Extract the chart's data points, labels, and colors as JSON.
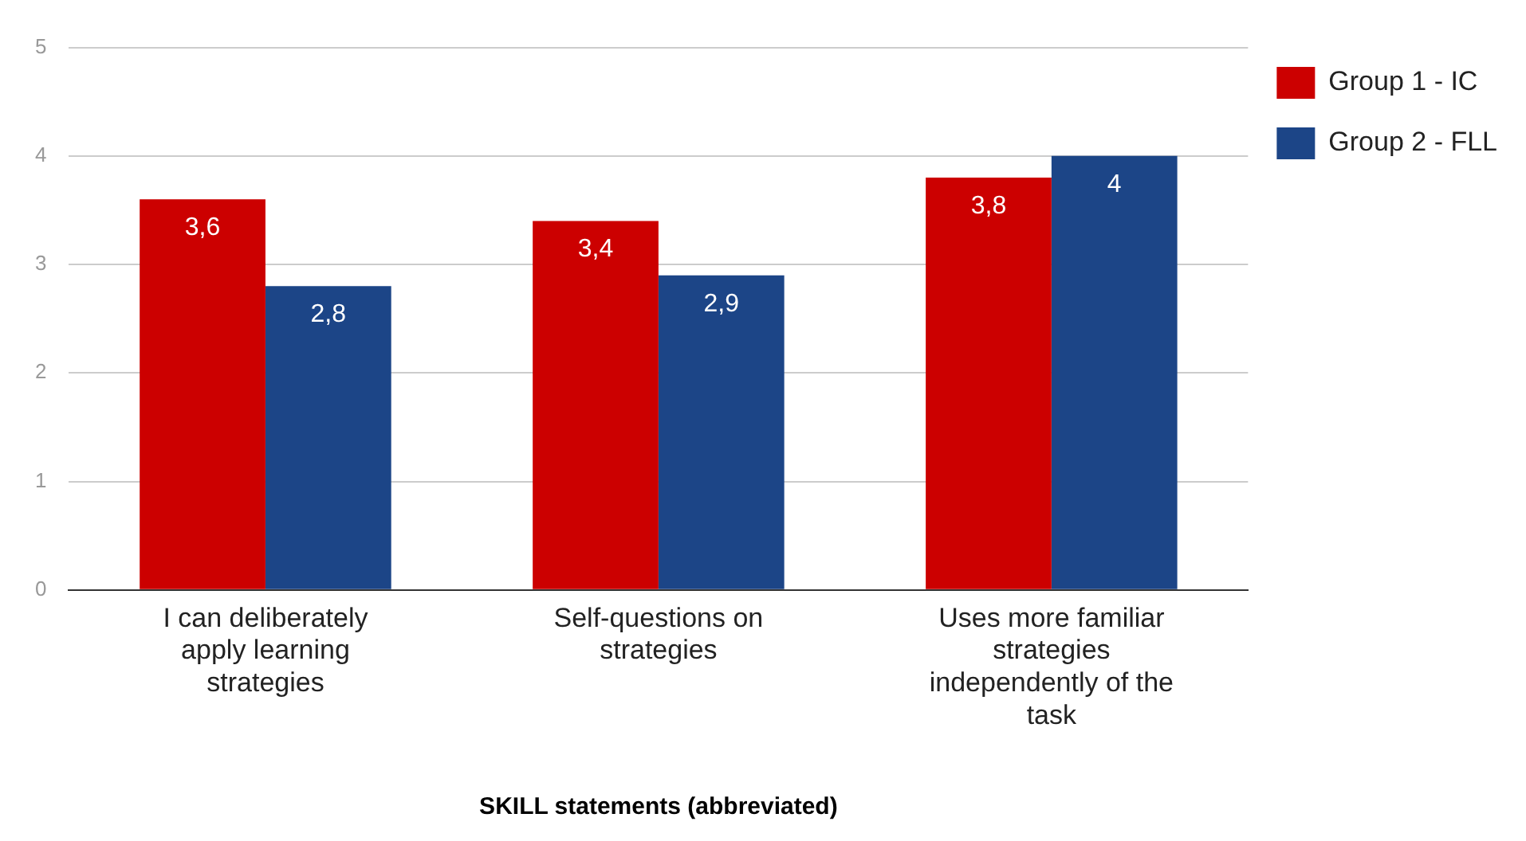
{
  "chart_data": {
    "type": "bar",
    "xlabel": "SKILL statements (abbreviated)",
    "categories": [
      "I can deliberately apply learning strategies",
      "Self-questions on strategies",
      "Uses more familiar strategies independently of the task"
    ],
    "series": [
      {
        "name": "Group 1 - IC",
        "color": "#cc0000",
        "values": [
          3.6,
          3.4,
          3.8
        ],
        "value_labels": [
          "3,6",
          "3,4",
          "3,8"
        ]
      },
      {
        "name": "Group 2 - FLL",
        "color": "#1c4587",
        "values": [
          2.8,
          2.9,
          4
        ],
        "value_labels": [
          "2,8",
          "2,9",
          "4"
        ]
      }
    ],
    "ylim": [
      0,
      5
    ],
    "yticks": [
      0,
      1,
      2,
      3,
      4,
      5
    ],
    "grid": "y",
    "legend": "top right"
  }
}
